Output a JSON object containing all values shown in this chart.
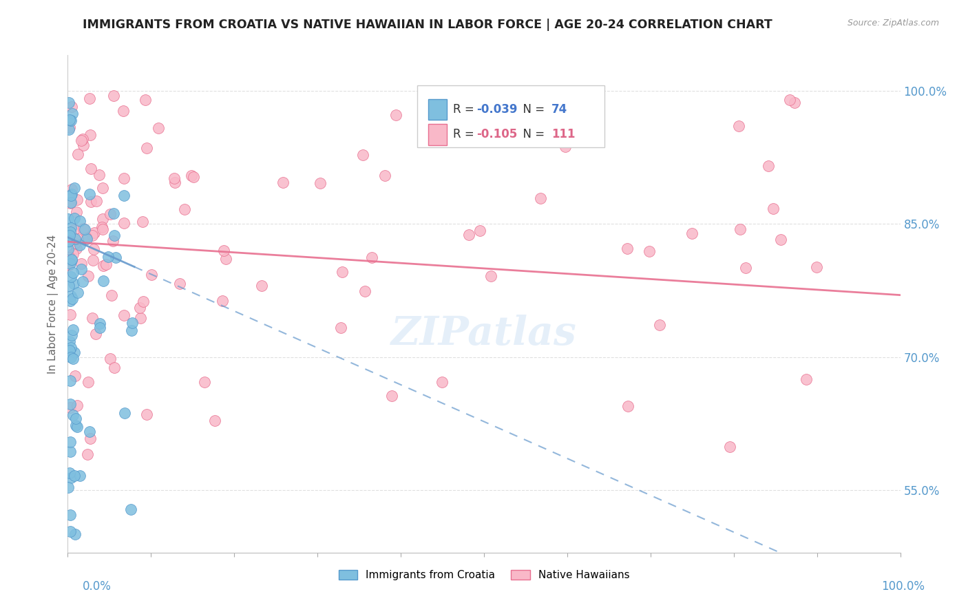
{
  "title": "IMMIGRANTS FROM CROATIA VS NATIVE HAWAIIAN IN LABOR FORCE | AGE 20-24 CORRELATION CHART",
  "source": "Source: ZipAtlas.com",
  "ylabel": "In Labor Force | Age 20-24",
  "legend_entry1_R": "-0.039",
  "legend_entry1_N": "74",
  "legend_entry2_R": "-0.105",
  "legend_entry2_N": "111",
  "legend_label1": "Immigrants from Croatia",
  "legend_label2": "Native Hawaiians",
  "watermark": "ZIPatlas",
  "blue_color": "#7fbfdf",
  "blue_edge_color": "#5599cc",
  "pink_color": "#f9b8c8",
  "pink_edge_color": "#e87090",
  "blue_line_color": "#6699cc",
  "pink_line_color": "#e87090",
  "bg_color": "#ffffff",
  "grid_color": "#dddddd",
  "title_color": "#222222",
  "axis_label_color": "#5599cc",
  "ylabel_color": "#666666",
  "R_blue_color": "#4477cc",
  "R_pink_color": "#dd6688"
}
